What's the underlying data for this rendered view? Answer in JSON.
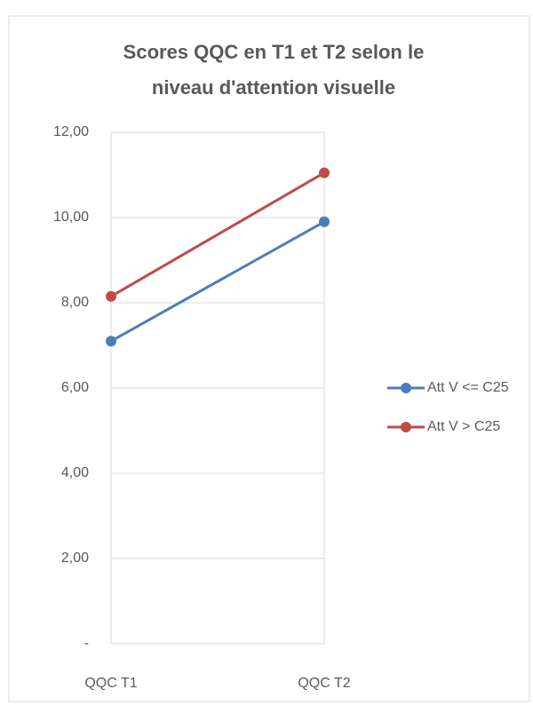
{
  "chart_data": {
    "type": "line",
    "title": [
      "Scores QQC  en T1 et T2 selon le",
      "niveau d'attention visuelle"
    ],
    "categories": [
      "QQC T1",
      "QQC T2"
    ],
    "series": [
      {
        "name": "Att V <= C25",
        "color": "#4a7ebb",
        "values": [
          7.1,
          9.9
        ]
      },
      {
        "name": "Att V > C25",
        "color": "#be4b48",
        "values": [
          8.15,
          11.05
        ]
      }
    ],
    "ylim": [
      0,
      12
    ],
    "yticks": [
      {
        "value": 0,
        "label": "-"
      },
      {
        "value": 2,
        "label": "2,00"
      },
      {
        "value": 4,
        "label": "4,00"
      },
      {
        "value": 6,
        "label": "6,00"
      },
      {
        "value": 8,
        "label": "8,00"
      },
      {
        "value": 10,
        "label": "10,00"
      },
      {
        "value": 12,
        "label": "12,00"
      }
    ],
    "grid": true,
    "legend": "right"
  }
}
